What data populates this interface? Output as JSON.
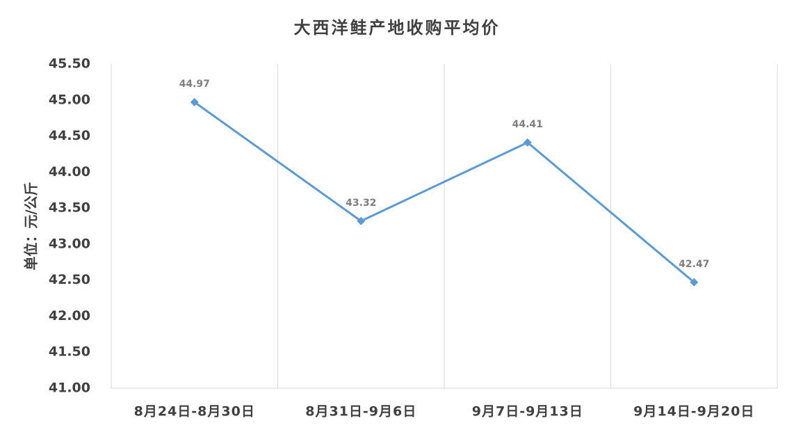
{
  "chart_data": {
    "type": "line",
    "title": "大西洋鲑产地收购平均价",
    "y_label": "单位：元/公斤",
    "categories": [
      "8月24日-8月30日",
      "8月31日-9月6日",
      "9月7日-9月13日",
      "9月14日-9月20日"
    ],
    "values": [
      44.97,
      43.32,
      44.41,
      42.47
    ],
    "color": "#5b9bd5",
    "ylim": [
      41,
      45.5
    ],
    "yticks": [
      {
        "value": 41,
        "label": "41.00"
      },
      {
        "value": 41.5,
        "label": "41.50"
      },
      {
        "value": 42,
        "label": "42.00"
      },
      {
        "value": 42.5,
        "label": "42.50"
      },
      {
        "value": 43,
        "label": "43.00"
      },
      {
        "value": 43.5,
        "label": "43.50"
      },
      {
        "value": 44,
        "label": "44.00"
      },
      {
        "value": 44.5,
        "label": "44.50"
      },
      {
        "value": 45,
        "label": "45.00"
      },
      {
        "value": 45.5,
        "label": "45.50"
      }
    ]
  }
}
